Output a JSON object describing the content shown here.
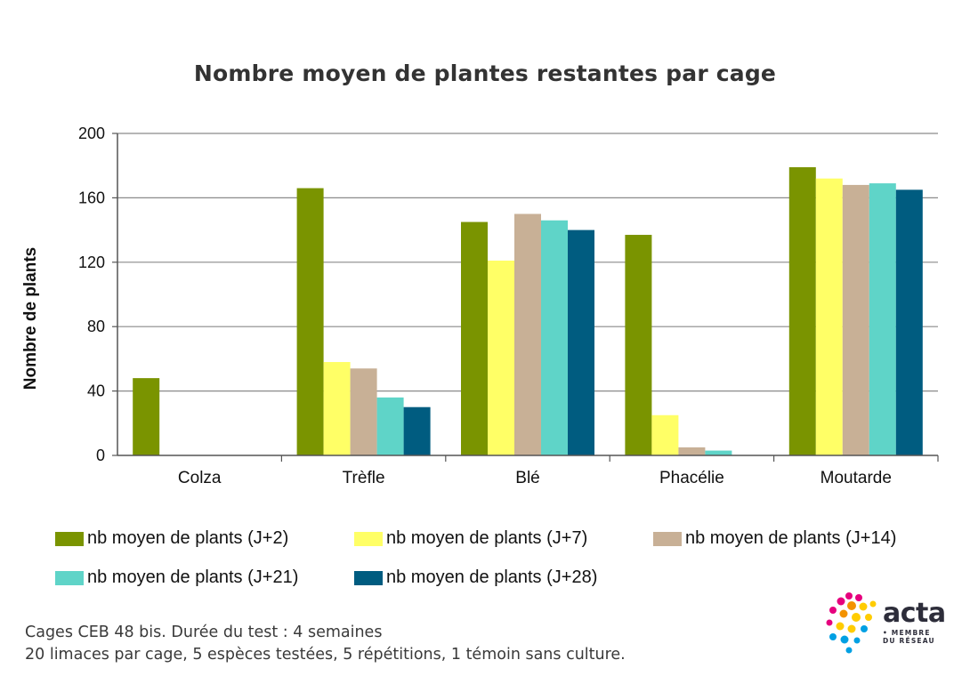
{
  "chart_data": {
    "type": "bar",
    "title": "Nombre moyen de plantes restantes par cage",
    "xlabel": "",
    "ylabel": "Nombre de plants",
    "ylim": [
      0,
      200
    ],
    "yticks": [
      "0",
      "40",
      "80",
      "120",
      "160",
      "200"
    ],
    "grid": true,
    "legend_position": "bottom",
    "categories": [
      "Colza",
      "Trèfle",
      "Blé",
      "Phacélie",
      "Moutarde"
    ],
    "series": [
      {
        "name": "nb moyen de plants (J+2)",
        "color": "#7a9400",
        "values": [
          48,
          166,
          145,
          137,
          179
        ]
      },
      {
        "name": "nb moyen de plants (J+7)",
        "color": "#ffff66",
        "values": [
          0,
          58,
          121,
          25,
          172
        ]
      },
      {
        "name": "nb moyen de plants (J+14)",
        "color": "#c8b096",
        "values": [
          0,
          54,
          150,
          5,
          168
        ]
      },
      {
        "name": "nb moyen de plants (J+21)",
        "color": "#5fd4c8",
        "values": [
          0,
          36,
          146,
          3,
          169
        ]
      },
      {
        "name": "nb moyen de plants (J+28)",
        "color": "#005c80",
        "values": [
          0,
          30,
          140,
          0,
          165
        ]
      }
    ]
  },
  "footnote": {
    "line1": "Cages CEB 48 bis. Durée du test : 4 semaines",
    "line2": "20 limaces par cage, 5 espèces testées, 5 répétitions, 1 témoin sans culture."
  },
  "logo": {
    "word": "acta",
    "sub1": "• MEMBRE",
    "sub2": "DU RÉSEAU"
  }
}
